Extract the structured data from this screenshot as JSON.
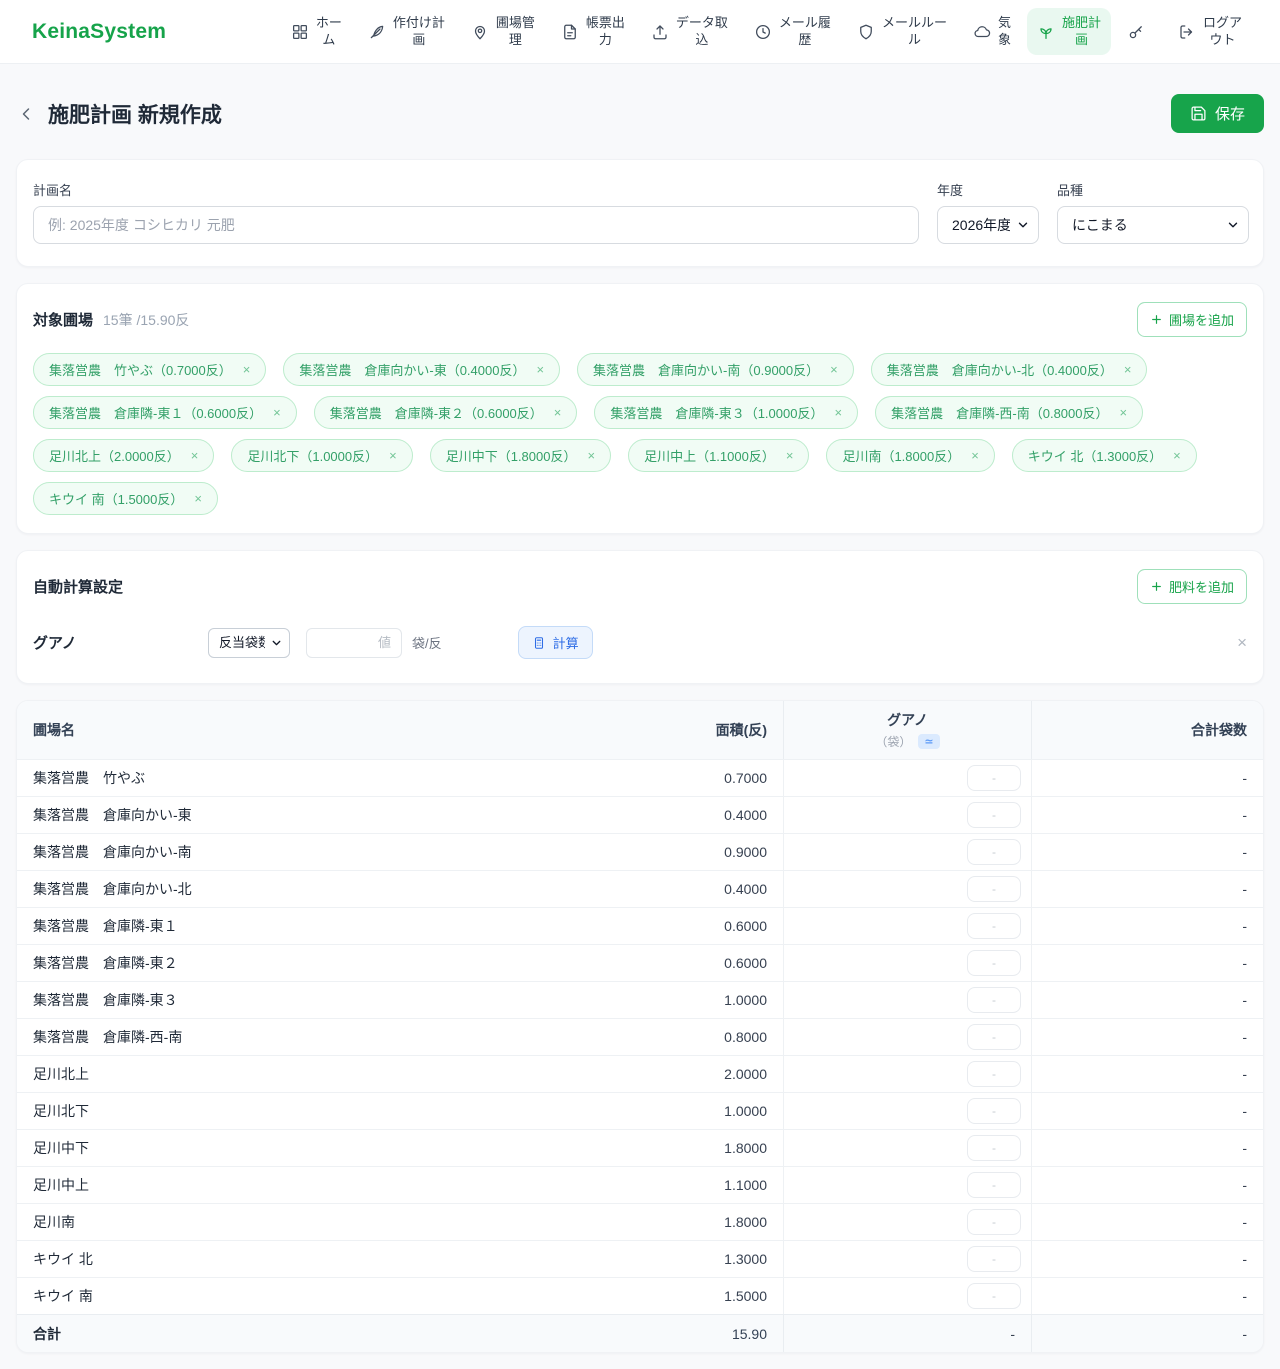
{
  "brand": "KeinaSystem",
  "nav": {
    "items": [
      {
        "name": "home",
        "label": "ホー\nム",
        "icon": "home-icon"
      },
      {
        "name": "crop-plan",
        "label": "作付け計\n画",
        "icon": "crop-plan-icon"
      },
      {
        "name": "field-management",
        "label": "圃場管\n理",
        "icon": "field-pin-icon"
      },
      {
        "name": "report-output",
        "label": "帳票出\n力",
        "icon": "report-icon"
      },
      {
        "name": "data-import",
        "label": "データ取\n込",
        "icon": "upload-icon"
      },
      {
        "name": "mail-history",
        "label": "メール履\n歴",
        "icon": "mail-history-icon"
      },
      {
        "name": "mail-rules",
        "label": "メールルー\nル",
        "icon": "mail-rule-icon"
      },
      {
        "name": "weather",
        "label": "気\n象",
        "icon": "weather-icon"
      },
      {
        "name": "fertilizer-plan",
        "label": "施肥計\n画",
        "icon": "sprout-icon",
        "active": true
      },
      {
        "name": "password",
        "label": "",
        "icon": "key-icon"
      },
      {
        "name": "logout",
        "label": "ログア\nウト",
        "icon": "logout-icon"
      }
    ]
  },
  "page": {
    "title": "施肥計画 新規作成",
    "save_label": "保存"
  },
  "plan_form": {
    "name_label": "計画名",
    "name_placeholder": "例: 2025年度 コシヒカリ 元肥",
    "year_label": "年度",
    "year_value": "2026年度",
    "variety_label": "品種",
    "variety_value": "にこまる"
  },
  "target_fields": {
    "title": "対象圃場",
    "count_text": "15筆 /15.90反",
    "add_button_label": "圃場を追加",
    "tags": [
      "集落営農　竹やぶ（0.7000反）",
      "集落営農　倉庫向かい-東（0.4000反）",
      "集落営農　倉庫向かい-南（0.9000反）",
      "集落営農　倉庫向かい-北（0.4000反）",
      "集落営農　倉庫隣-東１（0.6000反）",
      "集落営農　倉庫隣-東２（0.6000反）",
      "集落営農　倉庫隣-東３（1.0000反）",
      "集落営農　倉庫隣-西-南（0.8000反）",
      "足川北上（2.0000反）",
      "足川北下（1.0000反）",
      "足川中下（1.8000反）",
      "足川中上（1.1000反）",
      "足川南（1.8000反）",
      "キウイ 北（1.3000反）",
      "キウイ 南（1.5000反）"
    ]
  },
  "auto_calc": {
    "title": "自動計算設定",
    "add_button_label": "肥料を追加",
    "fertilizer": {
      "name": "グアノ",
      "method_value": "反当袋数",
      "value_placeholder": "値",
      "unit": "袋/反",
      "calc_label": "計算"
    }
  },
  "table": {
    "headers": {
      "field": "圃場名",
      "area": "面積(反)",
      "fertilizer": "グアノ",
      "fertilizer_unit": "（袋）",
      "total": "合計袋数"
    },
    "input_placeholder": "-",
    "empty_value": "-",
    "rows": [
      {
        "name": "集落営農　竹やぶ",
        "area": "0.7000"
      },
      {
        "name": "集落営農　倉庫向かい-東",
        "area": "0.4000"
      },
      {
        "name": "集落営農　倉庫向かい-南",
        "area": "0.9000"
      },
      {
        "name": "集落営農　倉庫向かい-北",
        "area": "0.4000"
      },
      {
        "name": "集落営農　倉庫隣-東１",
        "area": "0.6000"
      },
      {
        "name": "集落営農　倉庫隣-東２",
        "area": "0.6000"
      },
      {
        "name": "集落営農　倉庫隣-東３",
        "area": "1.0000"
      },
      {
        "name": "集落営農　倉庫隣-西-南",
        "area": "0.8000"
      },
      {
        "name": "足川北上",
        "area": "2.0000"
      },
      {
        "name": "足川北下",
        "area": "1.0000"
      },
      {
        "name": "足川中下",
        "area": "1.8000"
      },
      {
        "name": "足川中上",
        "area": "1.1000"
      },
      {
        "name": "足川南",
        "area": "1.8000"
      },
      {
        "name": "キウイ 北",
        "area": "1.3000"
      },
      {
        "name": "キウイ 南",
        "area": "1.5000"
      }
    ],
    "footer": {
      "label": "合計",
      "area": "15.90",
      "fertilizer": "-",
      "total": "-"
    }
  },
  "icons": {
    "close": "×",
    "approx": "≃"
  },
  "colors": {
    "accent_green": "#17a34a",
    "accent_blue": "#2e6de6",
    "tag_bg": "#f1fcf5"
  }
}
